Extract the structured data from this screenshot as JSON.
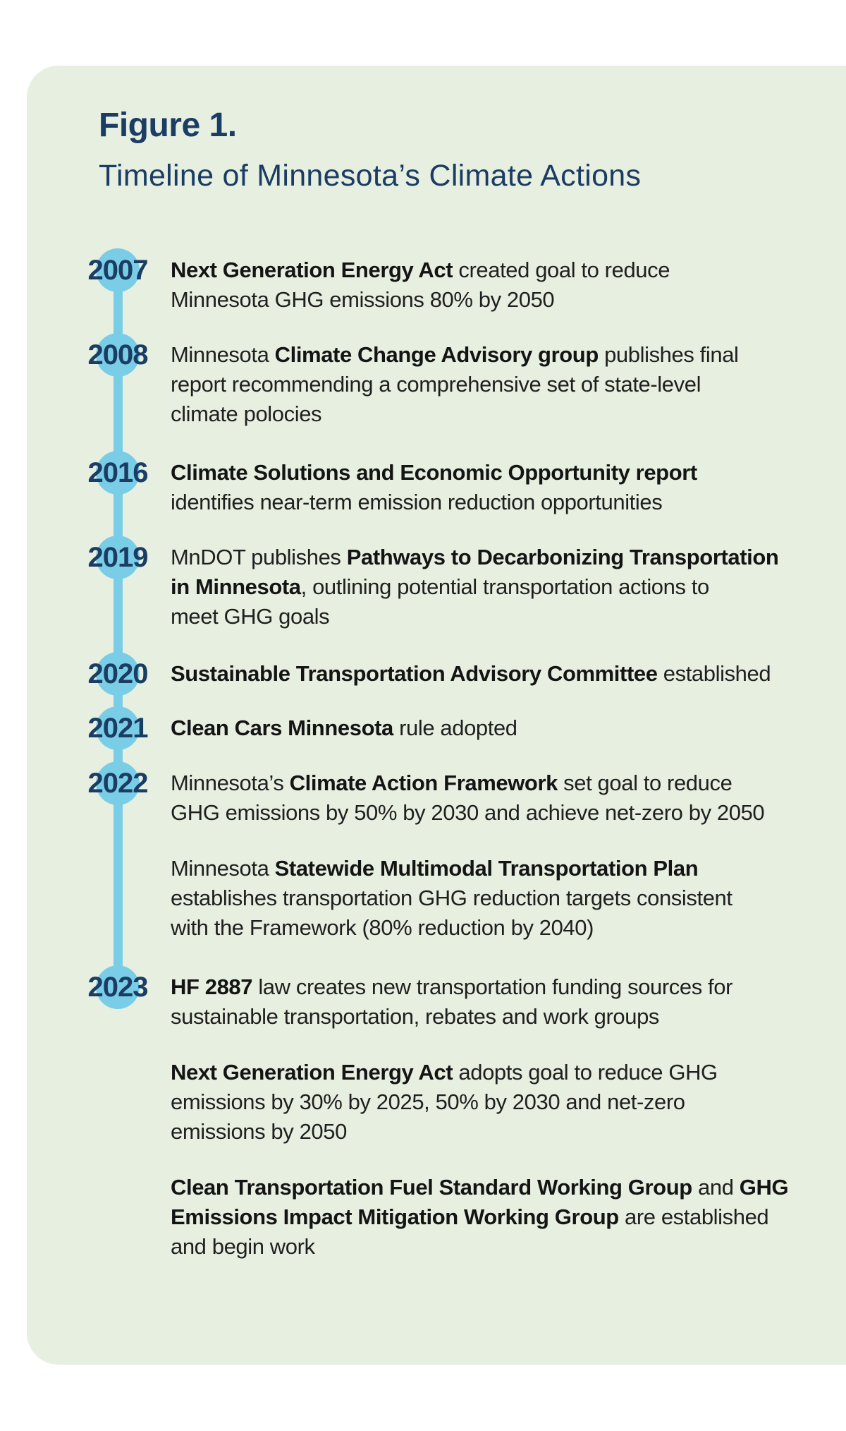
{
  "figure": {
    "label": "Figure 1.",
    "title": "Timeline of Minnesota’s Climate Actions"
  },
  "colors": {
    "card_background": "#e6efe0",
    "timeline_blue": "#7acde7",
    "heading_navy": "#1b3c63",
    "body_text": "#1f1f1f"
  },
  "timeline": {
    "entries": [
      {
        "year": "2007",
        "paragraphs": [
          [
            [
              {
                "t": "Next Generation Energy Act",
                "b": 1
              },
              {
                "t": " created goal to reduce",
                "b": 0
              }
            ],
            [
              {
                "t": "Minnesota GHG emissions 80% by 2050",
                "b": 0
              }
            ]
          ]
        ]
      },
      {
        "year": "2008",
        "paragraphs": [
          [
            [
              {
                "t": "Minnesota ",
                "b": 0
              },
              {
                "t": "Climate Change Advisory group",
                "b": 1
              },
              {
                "t": " publishes final",
                "b": 0
              }
            ],
            [
              {
                "t": "report recommending a comprehensive set of state-level",
                "b": 0
              }
            ],
            [
              {
                "t": "climate polocies",
                "b": 0
              }
            ]
          ]
        ]
      },
      {
        "year": "2016",
        "paragraphs": [
          [
            [
              {
                "t": "Climate Solutions and Economic Opportunity report",
                "b": 1
              }
            ],
            [
              {
                "t": "identifies near-term emission reduction opportunities",
                "b": 0
              }
            ]
          ]
        ]
      },
      {
        "year": "2019",
        "paragraphs": [
          [
            [
              {
                "t": "MnDOT publishes ",
                "b": 0
              },
              {
                "t": "Pathways to Decarbonizing Transportation",
                "b": 1
              }
            ],
            [
              {
                "t": "in Minnesota",
                "b": 1
              },
              {
                "t": ", outlining potential transportation actions to",
                "b": 0
              }
            ],
            [
              {
                "t": "meet GHG goals",
                "b": 0
              }
            ]
          ]
        ]
      },
      {
        "year": "2020",
        "paragraphs": [
          [
            [
              {
                "t": "Sustainable Transportation Advisory Committee",
                "b": 1
              },
              {
                "t": " established",
                "b": 0
              }
            ]
          ]
        ]
      },
      {
        "year": "2021",
        "paragraphs": [
          [
            [
              {
                "t": "Clean Cars Minnesota",
                "b": 1
              },
              {
                "t": " rule adopted",
                "b": 0
              }
            ]
          ]
        ]
      },
      {
        "year": "2022",
        "paragraphs": [
          [
            [
              {
                "t": "Minnesota’s ",
                "b": 0
              },
              {
                "t": "Climate Action Framework",
                "b": 1
              },
              {
                "t": " set goal to reduce",
                "b": 0
              }
            ],
            [
              {
                "t": "GHG emissions by 50% by 2030 and achieve net-zero by 2050",
                "b": 0
              }
            ]
          ],
          [
            [
              {
                "t": "Minnesota ",
                "b": 0
              },
              {
                "t": "Statewide Multimodal Transportation Plan",
                "b": 1
              }
            ],
            [
              {
                "t": "establishes transportation GHG reduction targets consistent",
                "b": 0
              }
            ],
            [
              {
                "t": "with the Framework (80% reduction by 2040)",
                "b": 0
              }
            ]
          ]
        ]
      },
      {
        "year": "2023",
        "paragraphs": [
          [
            [
              {
                "t": "HF 2887",
                "b": 1
              },
              {
                "t": " law creates new transportation funding sources for",
                "b": 0
              }
            ],
            [
              {
                "t": "sustainable transportation, rebates and work groups",
                "b": 0
              }
            ]
          ],
          [
            [
              {
                "t": "Next Generation Energy Act",
                "b": 1
              },
              {
                "t": " adopts goal to reduce GHG",
                "b": 0
              }
            ],
            [
              {
                "t": "emissions by 30% by 2025, 50% by 2030 and net-zero",
                "b": 0
              }
            ],
            [
              {
                "t": "emissions by 2050",
                "b": 0
              }
            ]
          ],
          [
            [
              {
                "t": "Clean Transportation Fuel Standard Working Group",
                "b": 1
              },
              {
                "t": " and ",
                "b": 0
              },
              {
                "t": "GHG",
                "b": 1
              }
            ],
            [
              {
                "t": "Emissions Impact Mitigation Working Group",
                "b": 1
              },
              {
                "t": " are established",
                "b": 0
              }
            ],
            [
              {
                "t": "and begin work",
                "b": 0
              }
            ]
          ]
        ]
      }
    ]
  }
}
